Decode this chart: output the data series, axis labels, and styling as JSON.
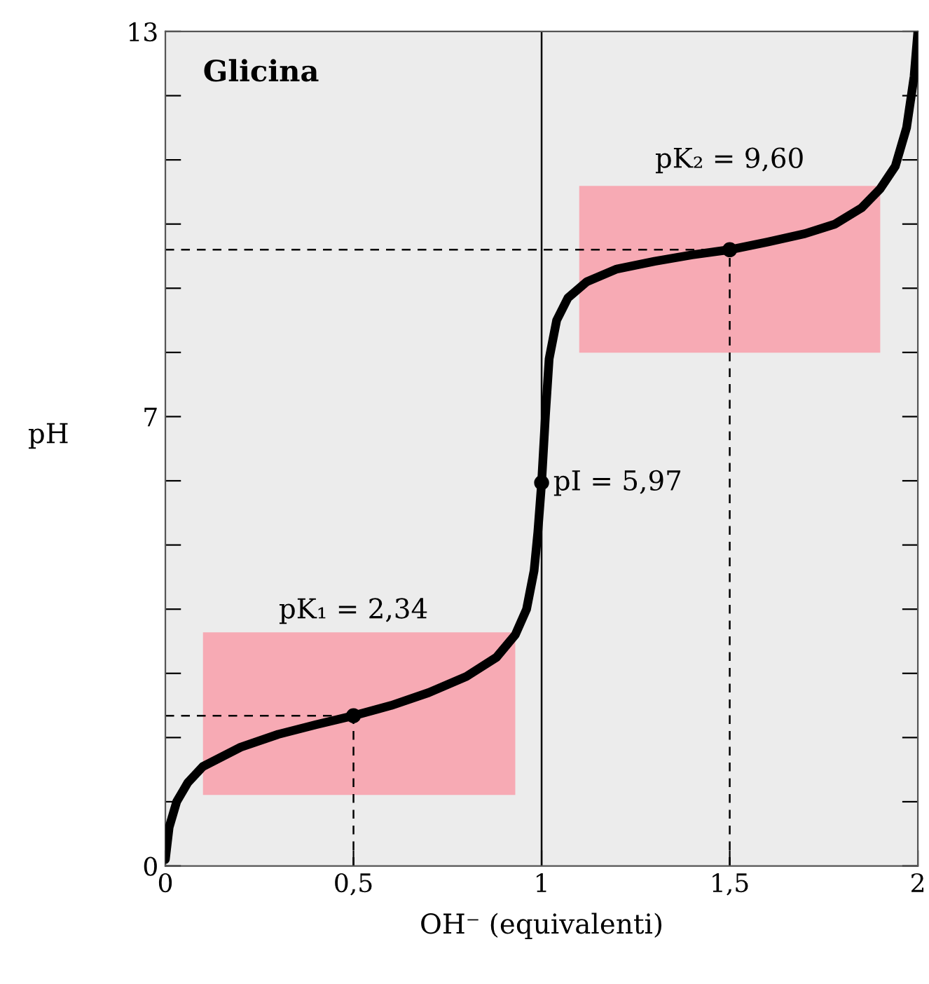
{
  "chart_data": {
    "type": "line",
    "title": "Glicina",
    "xlabel": "OH⁻ (equivalenti)",
    "ylabel": "pH",
    "xlim": [
      0,
      2
    ],
    "ylim": [
      0,
      13
    ],
    "xticks": [
      0,
      {
        "value": 0.5,
        "label": "0,5"
      },
      1,
      {
        "value": 1.5,
        "label": "1,5"
      },
      2
    ],
    "yticks": [
      0,
      {
        "value": 1,
        "label": null
      },
      {
        "value": 2,
        "label": null
      },
      {
        "value": 3,
        "label": null
      },
      {
        "value": 4,
        "label": null
      },
      {
        "value": 5,
        "label": null
      },
      {
        "value": 6,
        "label": null
      },
      7,
      {
        "value": 8,
        "label": null
      },
      {
        "value": 9,
        "label": null
      },
      {
        "value": 10,
        "label": null
      },
      {
        "value": 11,
        "label": null
      },
      {
        "value": 12,
        "label": null
      },
      13
    ],
    "grid": false,
    "legend": false,
    "series": [
      {
        "color": "#000000",
        "x": [
          0,
          0.01,
          0.03,
          0.06,
          0.1,
          0.2,
          0.3,
          0.4,
          0.5,
          0.6,
          0.7,
          0.8,
          0.88,
          0.93,
          0.96,
          0.98,
          0.99,
          1.0,
          1.01,
          1.02,
          1.04,
          1.07,
          1.12,
          1.2,
          1.3,
          1.4,
          1.5,
          1.6,
          1.7,
          1.78,
          1.85,
          1.9,
          1.94,
          1.97,
          1.99,
          2.0
        ],
        "values": [
          0.1,
          0.6,
          1.0,
          1.3,
          1.55,
          1.85,
          2.05,
          2.2,
          2.34,
          2.5,
          2.7,
          2.95,
          3.25,
          3.6,
          4.0,
          4.6,
          5.2,
          5.97,
          7.0,
          7.9,
          8.5,
          8.85,
          9.1,
          9.3,
          9.42,
          9.52,
          9.6,
          9.72,
          9.85,
          10.0,
          10.25,
          10.55,
          10.9,
          11.5,
          12.3,
          13.0
        ]
      },
      {
        "type": "scatter",
        "color": "#000000",
        "marker": "circle",
        "x": [
          0.5,
          1.0,
          1.5
        ],
        "values": [
          2.34,
          5.97,
          9.6
        ]
      }
    ],
    "ref_lines": [
      {
        "axis": "x",
        "value": 1,
        "line_style": "solid",
        "color": "#000000"
      },
      {
        "axis": "y",
        "value": 2.34,
        "line_style": "dashed",
        "color": "#000000"
      },
      {
        "axis": "x",
        "value": 0.5,
        "line_style": "dashed",
        "color": "#000000"
      },
      {
        "axis": "y",
        "value": 9.6,
        "line_style": "dashed",
        "color": "#000000"
      },
      {
        "axis": "x",
        "value": 1.5,
        "line_style": "dashed",
        "color": "#000000"
      }
    ],
    "annotations": [
      "pK₁ = 2,34",
      {
        "text": "pI = 5,97",
        "x": 1,
        "y": 5.97
      },
      "pK₂ = 9,60"
    ]
  }
}
